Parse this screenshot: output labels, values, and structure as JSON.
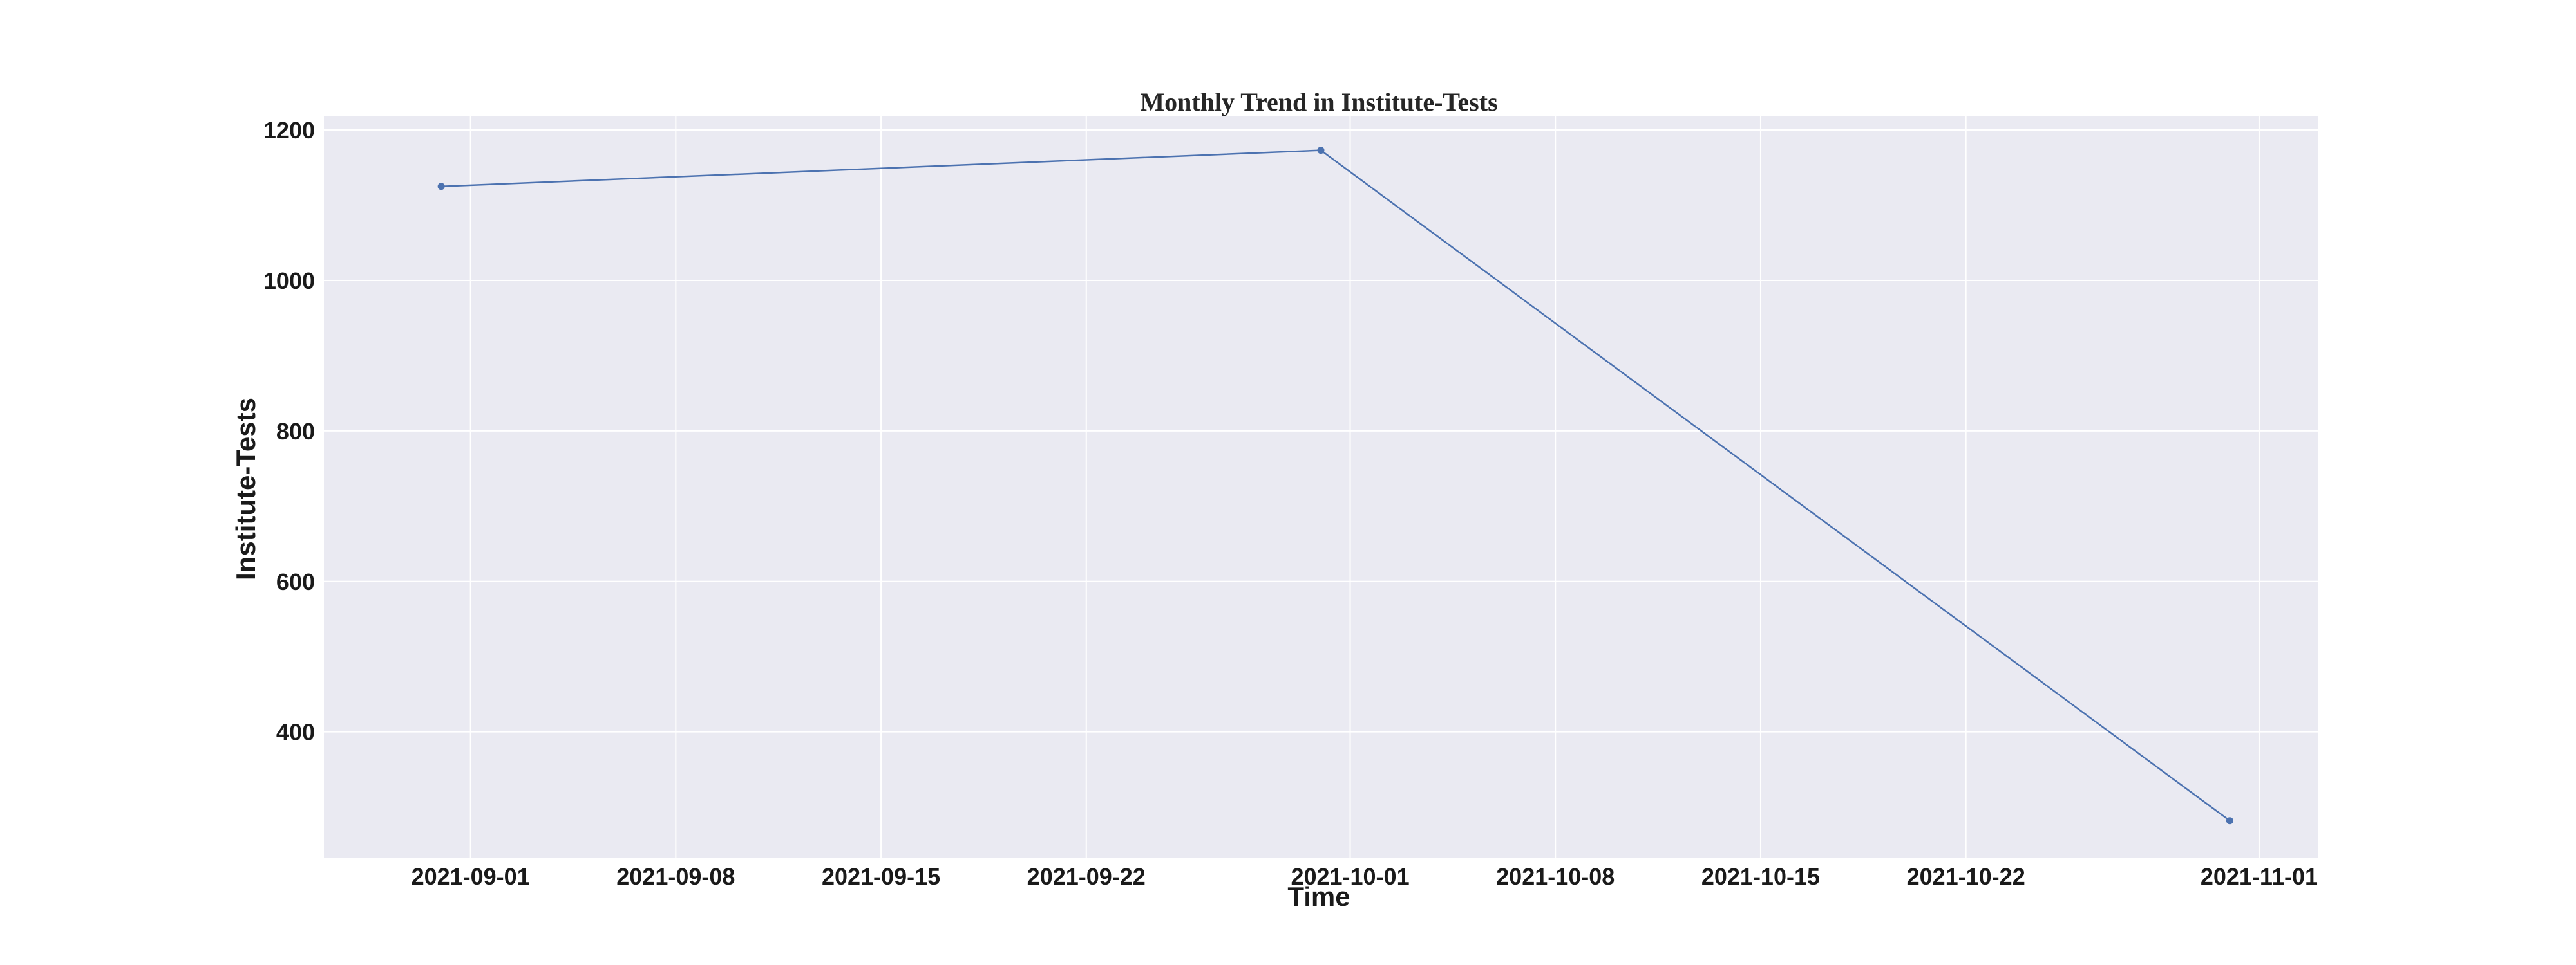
{
  "chart_data": {
    "type": "line",
    "title": "Monthly Trend in Institute-Tests",
    "xlabel": "Time",
    "ylabel": "Institute-Tests",
    "x_type": "date",
    "x": [
      "2021-08-31",
      "2021-09-30",
      "2021-10-31"
    ],
    "series": [
      {
        "values": [
          1125,
          1173,
          282
        ],
        "color": "#4c72b0",
        "marker": "circle"
      }
    ],
    "xlim": [
      "2021-08-27",
      "2021-11-03"
    ],
    "ylim": [
      233,
      1218
    ],
    "x_ticks": [
      "2021-09-01",
      "2021-09-08",
      "2021-09-15",
      "2021-09-22",
      "2021-10-01",
      "2021-10-08",
      "2021-10-15",
      "2021-10-22",
      "2021-11-01"
    ],
    "y_ticks": [
      400,
      600,
      800,
      1000,
      1200
    ],
    "grid": true,
    "legend": "none",
    "style": {
      "plot_background": "#eaeaf2",
      "grid_color": "#ffffff",
      "line_color": "#4c72b0"
    }
  }
}
